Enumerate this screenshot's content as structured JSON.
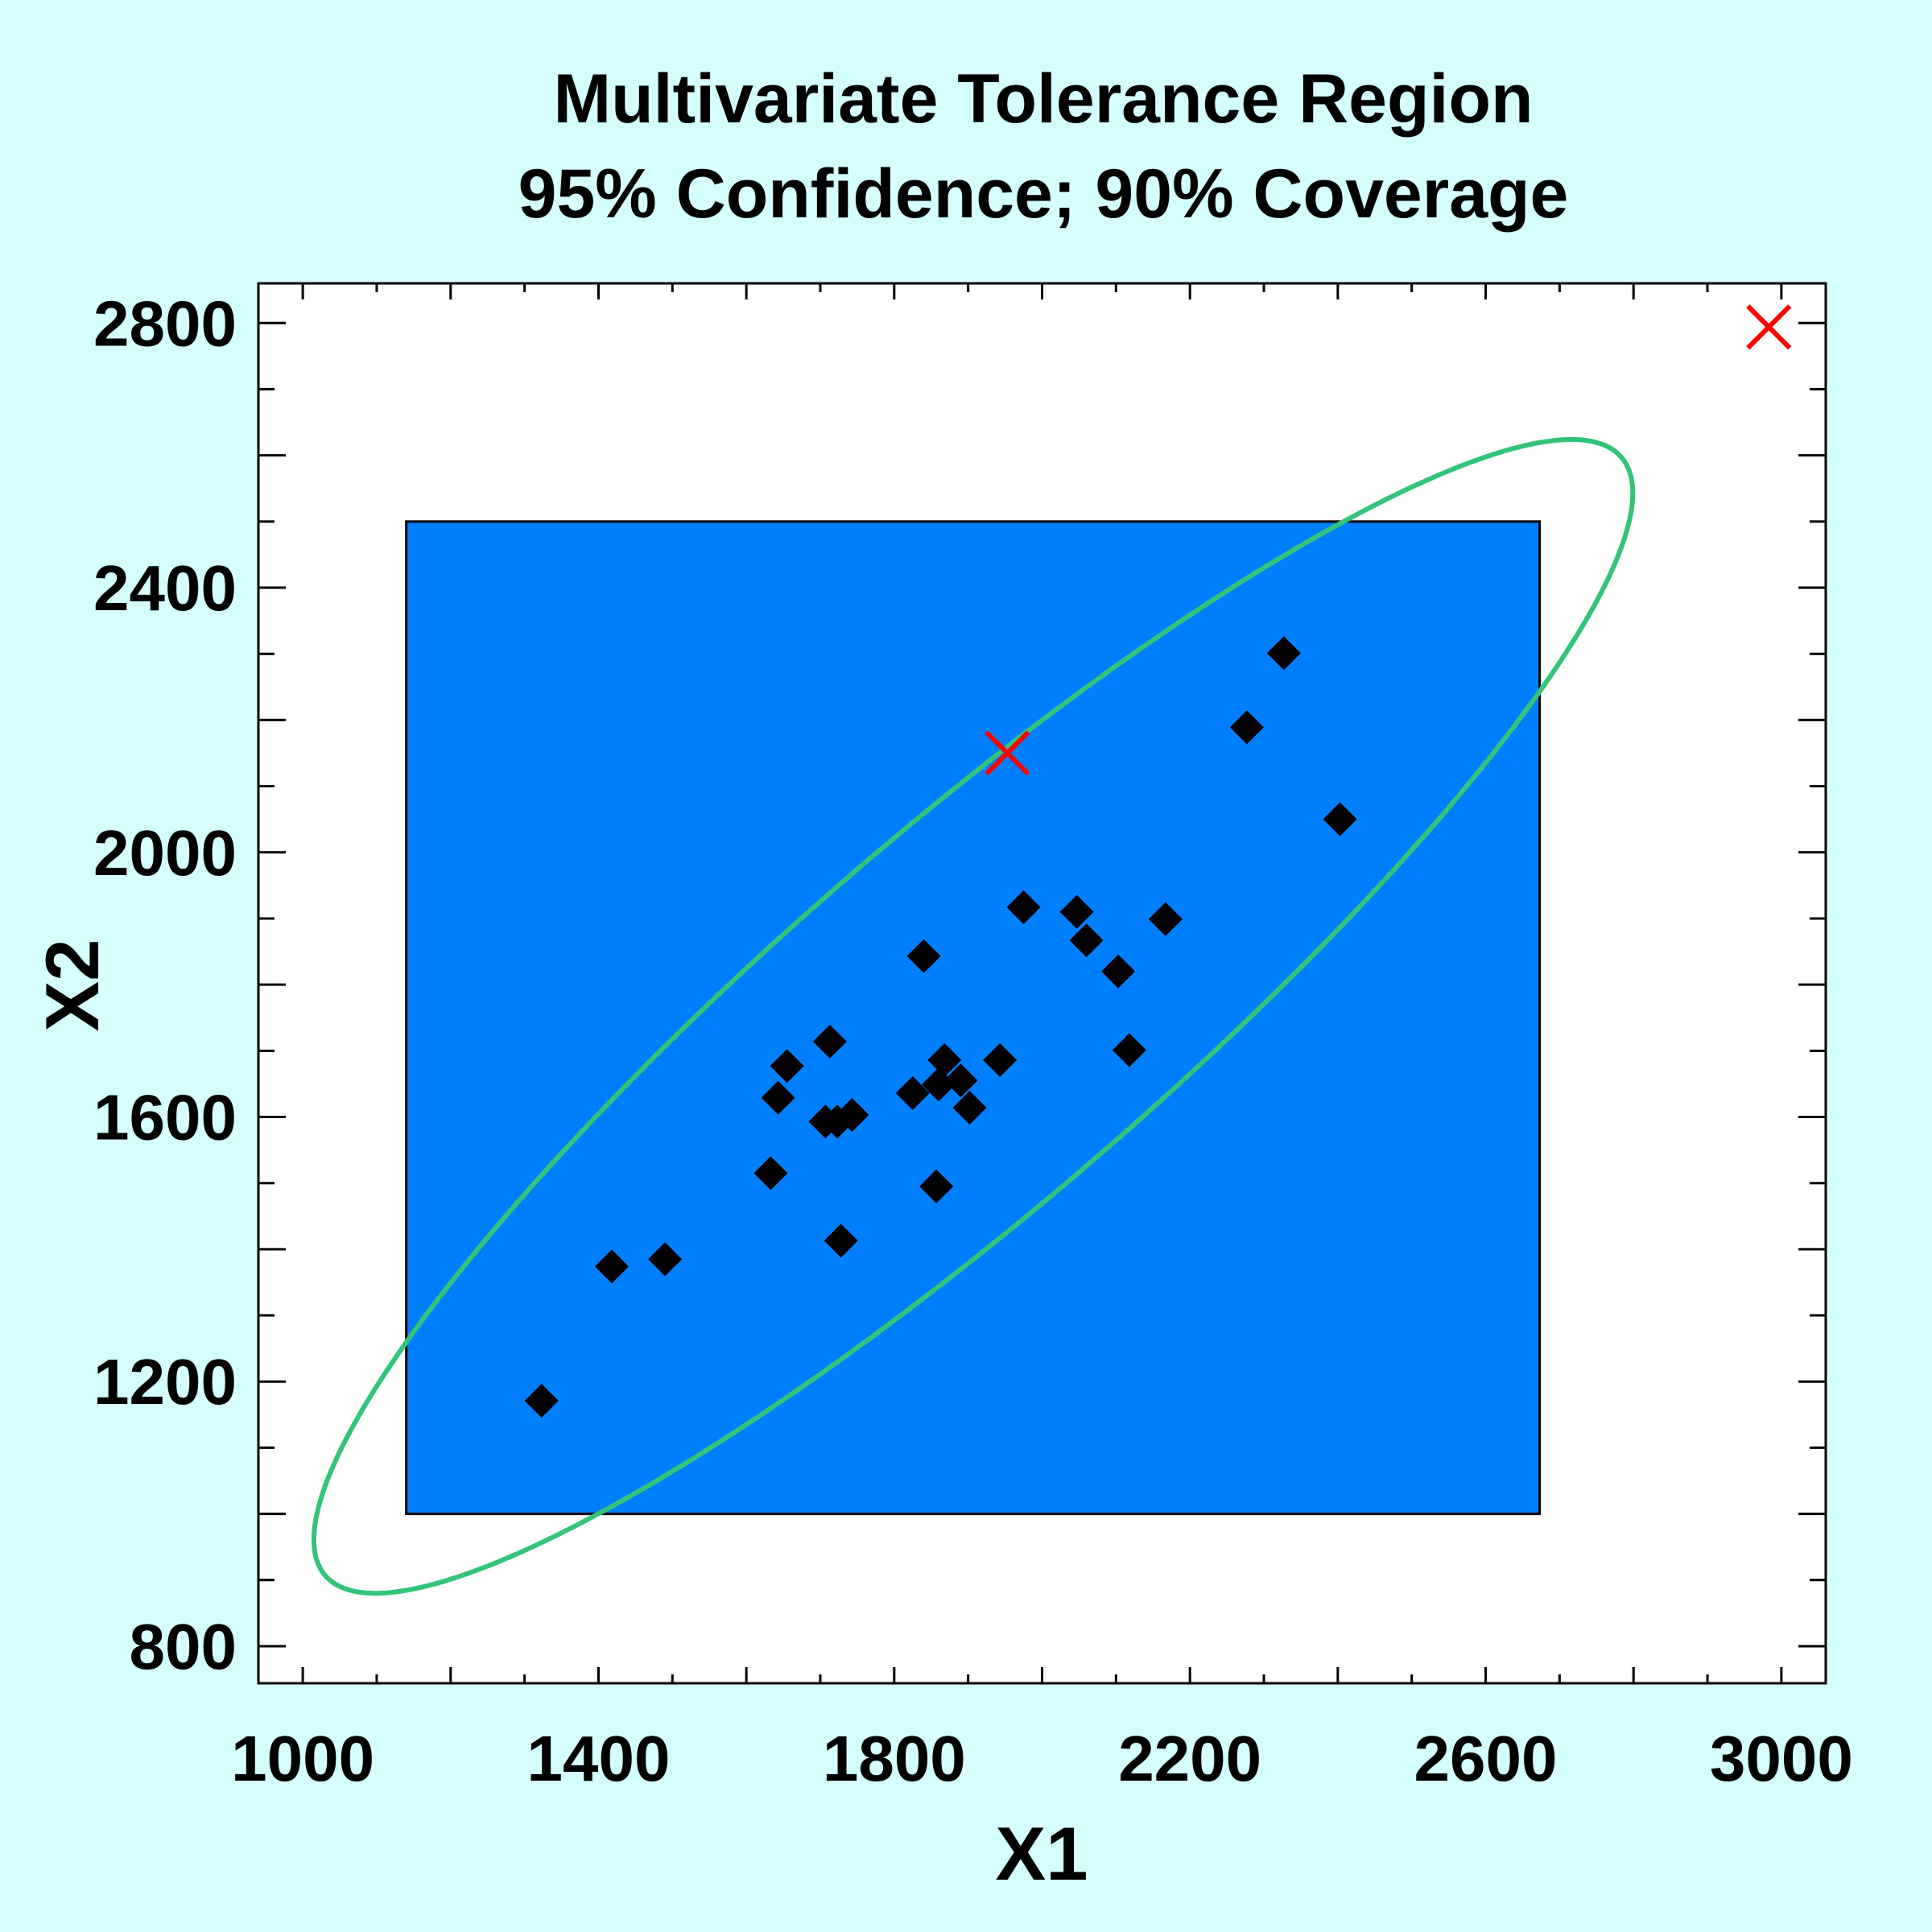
{
  "chart_data": {
    "type": "scatter",
    "title": "Multivariate Tolerance Region",
    "subtitle": "95% Confidence; 90% Coverage",
    "xlabel": "X1",
    "ylabel": "X2",
    "xlim": [
      940,
      3060
    ],
    "ylim": [
      744,
      2860
    ],
    "xticks": [
      1000,
      1400,
      1800,
      2200,
      2600,
      3000
    ],
    "yticks": [
      800,
      1200,
      1600,
      2000,
      2400,
      2800
    ],
    "minor_step": 100,
    "grid": false,
    "colors": {
      "background": "#d5fefe",
      "plot": "#ffffff",
      "rectangle": "#0080ff",
      "ellipse": "#33c47a",
      "points": "#000000",
      "outliers": "#ff0000"
    },
    "tolerance_rectangle": {
      "x1": [
        1140,
        2673
      ],
      "x2": [
        1000,
        2500
      ]
    },
    "tolerance_ellipse": {
      "center": [
        1907,
        1752
      ],
      "x1_halfwidth": 892,
      "x2_halfwidth": 872,
      "correlation": 0.907
    },
    "points": [
      [
        1323,
        1171
      ],
      [
        1418,
        1374
      ],
      [
        1490,
        1385
      ],
      [
        1633,
        1515
      ],
      [
        1643,
        1629
      ],
      [
        1655,
        1677
      ],
      [
        1713,
        1714
      ],
      [
        1707,
        1593
      ],
      [
        1723,
        1593
      ],
      [
        1743,
        1603
      ],
      [
        1728,
        1413
      ],
      [
        1825,
        1636
      ],
      [
        1840,
        1843
      ],
      [
        1857,
        1495
      ],
      [
        1860,
        1649
      ],
      [
        1868,
        1686
      ],
      [
        1890,
        1655
      ],
      [
        1902,
        1614
      ],
      [
        1943,
        1686
      ],
      [
        1975,
        1917
      ],
      [
        2047,
        1910
      ],
      [
        2060,
        1867
      ],
      [
        2103,
        1820
      ],
      [
        2118,
        1701
      ],
      [
        2167,
        1899
      ],
      [
        2277,
        2189
      ],
      [
        2327,
        2301
      ],
      [
        2403,
        2050
      ]
    ],
    "outliers": [
      [
        1953,
        2150
      ],
      [
        2983,
        2794
      ]
    ]
  }
}
